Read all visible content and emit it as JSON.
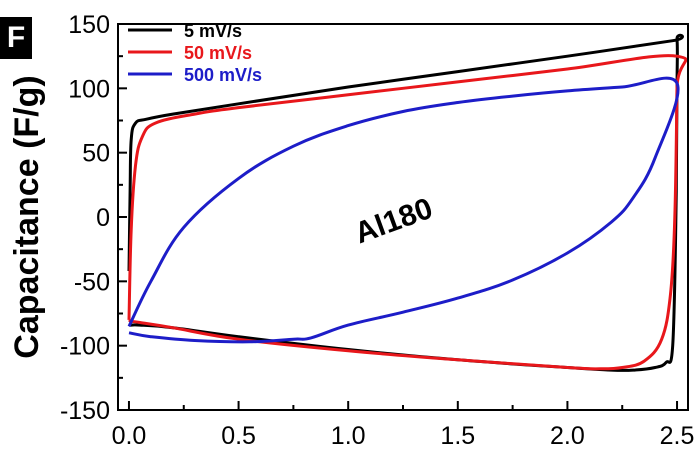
{
  "panel_label": "F",
  "chart_data": {
    "type": "line",
    "title": "",
    "xlabel": "",
    "ylabel": "Capacitance (F/g)",
    "xlim": [
      -0.05,
      2.55
    ],
    "ylim": [
      -150,
      150
    ],
    "x_ticks": [
      0.0,
      0.5,
      1.0,
      1.5,
      2.0,
      2.5
    ],
    "x_tick_labels": [
      "0.0",
      "0.5",
      "1.0",
      "1.5",
      "2.0",
      "2.5"
    ],
    "y_ticks": [
      -150,
      -100,
      -50,
      0,
      50,
      100,
      150
    ],
    "y_tick_labels": [
      "-150",
      "-100",
      "-50",
      "0",
      "50",
      "100",
      "150"
    ],
    "grid": false,
    "legend": "top-left",
    "annotation": "Al180",
    "series": [
      {
        "name": "5 mV/s",
        "color": "#000000",
        "x": [
          0.0,
          0.005,
          0.01,
          0.03,
          0.08,
          0.2,
          0.5,
          1.0,
          1.5,
          2.0,
          2.48,
          2.5,
          2.5,
          2.495,
          2.48,
          2.45,
          2.4,
          2.3,
          2.2,
          2.0,
          1.5,
          1.0,
          0.5,
          0.2,
          0.05,
          0.01,
          0.0
        ],
        "y": [
          -42,
          20,
          60,
          73,
          76,
          80,
          88,
          101,
          113,
          125,
          137,
          138,
          100,
          0,
          -100,
          -113,
          -117,
          -119,
          -119,
          -117,
          -111,
          -103,
          -93,
          -86,
          -84,
          -84,
          -84
        ]
      },
      {
        "name": "50 mV/s",
        "color": "#e8171b",
        "x": [
          0.0,
          0.01,
          0.03,
          0.06,
          0.12,
          0.3,
          0.5,
          1.0,
          1.5,
          2.0,
          2.5,
          2.5,
          2.49,
          2.47,
          2.43,
          2.35,
          2.25,
          2.15,
          2.0,
          1.5,
          1.0,
          0.5,
          0.2,
          0.05,
          0.01,
          0.0
        ],
        "y": [
          -80,
          -10,
          40,
          62,
          73,
          80,
          85,
          95,
          105,
          115,
          125,
          100,
          0,
          -60,
          -95,
          -112,
          -117,
          -118,
          -117,
          -111,
          -104,
          -95,
          -86,
          -82,
          -81,
          -80
        ]
      },
      {
        "name": "500 mV/s",
        "color": "#1d1dc8",
        "x": [
          0.0,
          0.1,
          0.25,
          0.5,
          0.75,
          1.0,
          1.25,
          1.5,
          1.75,
          2.0,
          2.25,
          2.5,
          2.4,
          2.3,
          2.2,
          2.0,
          1.75,
          1.5,
          1.25,
          1.0,
          0.83,
          0.75,
          0.55,
          0.3,
          0.1,
          0.0
        ],
        "y": [
          -85,
          -50,
          -8,
          30,
          55,
          71,
          82,
          89,
          94,
          98,
          101,
          104,
          46,
          15,
          -4,
          -28,
          -49,
          -63,
          -74,
          -84,
          -94,
          -95,
          -97,
          -96,
          -93,
          -90
        ]
      }
    ]
  }
}
